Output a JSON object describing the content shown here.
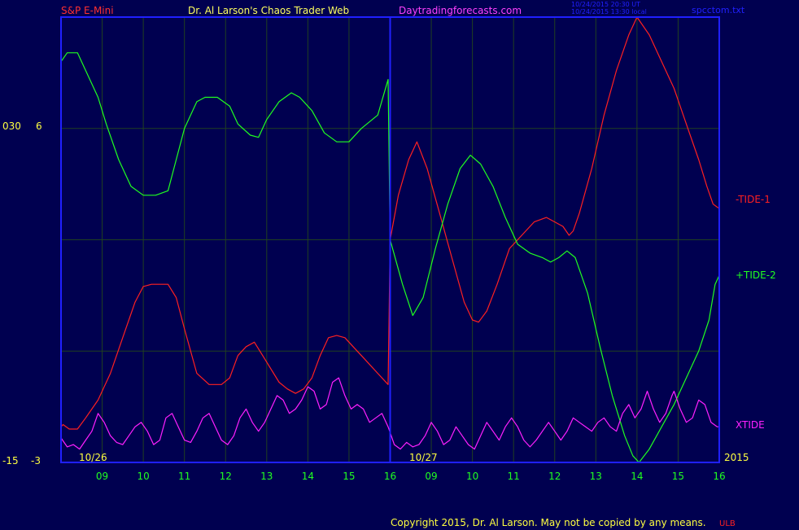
{
  "header": {
    "symbol": "S&P E-Mini",
    "author": "Dr. Al Larson's Chaos Trader Web",
    "site": "Daytradingforecasts.com",
    "timestamp1": "10/24/2015 20:30 UT",
    "timestamp2": "10/24/2015 13:30 local",
    "file": "spcctom.txt"
  },
  "footer": {
    "copyright": "Copyright 2015, Dr. Al Larson. May not be copied by any means.",
    "mark": "ULB"
  },
  "colors": {
    "background": "#000050",
    "frame": "#2020ff",
    "grid": "#204020",
    "tide1": "#ff2020",
    "tide2": "#20ff20",
    "xtide": "#ff20ff",
    "hours": "#20ff20",
    "text_yellow": "#ffff40",
    "text_magenta": "#ff40ff",
    "text_white": "#ffffff"
  },
  "chart_data": {
    "type": "line",
    "x_unit": "hour index (day 10/26 = 8..16, day 10/27 = 16..24)",
    "xlim": [
      8.0,
      24.0
    ],
    "ylim": [
      0,
      100
    ],
    "y_axis_labels": {
      "left_outer_top": "030",
      "left_inner_top": "6",
      "left_outer_bottom": "-15",
      "left_inner_bottom": "-3"
    },
    "date_labels": [
      {
        "x": 8.4,
        "label": "10/26"
      },
      {
        "x": 16.4,
        "label": "10/27"
      }
    ],
    "year_label": "2015",
    "day_boundary": 16.0,
    "hour_ticks": [
      {
        "x": 9,
        "label": "09"
      },
      {
        "x": 10,
        "label": "10"
      },
      {
        "x": 11,
        "label": "11"
      },
      {
        "x": 12,
        "label": "12"
      },
      {
        "x": 13,
        "label": "13"
      },
      {
        "x": 14,
        "label": "14"
      },
      {
        "x": 15,
        "label": "15"
      },
      {
        "x": 16,
        "label": "16"
      },
      {
        "x": 17,
        "label": "09"
      },
      {
        "x": 18,
        "label": "10"
      },
      {
        "x": 19,
        "label": "11"
      },
      {
        "x": 20,
        "label": "12"
      },
      {
        "x": 21,
        "label": "13"
      },
      {
        "x": 22,
        "label": "14"
      },
      {
        "x": 23,
        "label": "15"
      },
      {
        "x": 24,
        "label": "16"
      }
    ],
    "grid_y": [
      25,
      50,
      75
    ],
    "series": [
      {
        "name": "-TIDE-1",
        "color": "#ff2020",
        "points": [
          [
            8.0,
            8.0
          ],
          [
            8.05,
            8.5
          ],
          [
            8.2,
            7.5
          ],
          [
            8.4,
            7.5
          ],
          [
            8.6,
            10
          ],
          [
            8.9,
            14
          ],
          [
            9.2,
            20
          ],
          [
            9.5,
            28
          ],
          [
            9.8,
            36
          ],
          [
            10.0,
            39.5
          ],
          [
            10.2,
            40
          ],
          [
            10.6,
            40
          ],
          [
            10.8,
            37
          ],
          [
            11.0,
            30
          ],
          [
            11.3,
            20
          ],
          [
            11.6,
            17.5
          ],
          [
            11.9,
            17.5
          ],
          [
            12.1,
            19
          ],
          [
            12.3,
            24
          ],
          [
            12.5,
            26
          ],
          [
            12.7,
            27
          ],
          [
            12.9,
            24
          ],
          [
            13.1,
            21
          ],
          [
            13.3,
            18
          ],
          [
            13.5,
            16.5
          ],
          [
            13.7,
            15.5
          ],
          [
            13.9,
            16.5
          ],
          [
            14.1,
            19
          ],
          [
            14.3,
            24
          ],
          [
            14.5,
            28
          ],
          [
            14.7,
            28.5
          ],
          [
            14.9,
            28
          ],
          [
            15.1,
            26
          ],
          [
            15.4,
            23
          ],
          [
            15.7,
            20
          ],
          [
            15.95,
            17.5
          ],
          [
            16.0,
            50
          ],
          [
            16.2,
            60
          ],
          [
            16.45,
            68
          ],
          [
            16.65,
            72
          ],
          [
            16.9,
            66
          ],
          [
            17.2,
            56
          ],
          [
            17.5,
            46
          ],
          [
            17.8,
            36
          ],
          [
            18.0,
            32
          ],
          [
            18.15,
            31.5
          ],
          [
            18.35,
            34
          ],
          [
            18.6,
            40
          ],
          [
            18.9,
            48
          ],
          [
            19.2,
            51
          ],
          [
            19.5,
            54
          ],
          [
            19.8,
            55
          ],
          [
            20.0,
            54
          ],
          [
            20.2,
            53
          ],
          [
            20.35,
            51
          ],
          [
            20.45,
            52
          ],
          [
            20.6,
            56
          ],
          [
            20.9,
            66
          ],
          [
            21.2,
            78
          ],
          [
            21.5,
            88
          ],
          [
            21.8,
            96
          ],
          [
            22.0,
            100
          ],
          [
            22.3,
            96
          ],
          [
            22.6,
            90
          ],
          [
            22.9,
            84
          ],
          [
            23.2,
            76
          ],
          [
            23.5,
            68
          ],
          [
            23.7,
            62
          ],
          [
            23.85,
            58
          ],
          [
            24.0,
            57
          ]
        ]
      },
      {
        "name": "+TIDE-2",
        "color": "#20ff20",
        "points": [
          [
            8.0,
            90
          ],
          [
            8.15,
            92
          ],
          [
            8.4,
            92
          ],
          [
            8.6,
            88
          ],
          [
            8.9,
            82
          ],
          [
            9.1,
            76
          ],
          [
            9.4,
            68
          ],
          [
            9.7,
            62
          ],
          [
            10.0,
            60
          ],
          [
            10.3,
            60
          ],
          [
            10.6,
            61
          ],
          [
            10.8,
            68
          ],
          [
            11.0,
            75
          ],
          [
            11.3,
            81
          ],
          [
            11.5,
            82
          ],
          [
            11.8,
            82
          ],
          [
            12.1,
            80
          ],
          [
            12.3,
            76
          ],
          [
            12.6,
            73.5
          ],
          [
            12.8,
            73
          ],
          [
            13.0,
            77
          ],
          [
            13.3,
            81
          ],
          [
            13.6,
            83
          ],
          [
            13.8,
            82
          ],
          [
            14.1,
            79
          ],
          [
            14.4,
            74
          ],
          [
            14.7,
            72
          ],
          [
            15.0,
            72
          ],
          [
            15.3,
            75
          ],
          [
            15.7,
            78
          ],
          [
            15.95,
            86
          ],
          [
            16.0,
            50
          ],
          [
            16.3,
            40
          ],
          [
            16.55,
            33
          ],
          [
            16.8,
            37
          ],
          [
            17.1,
            48
          ],
          [
            17.4,
            58
          ],
          [
            17.7,
            66
          ],
          [
            17.95,
            69
          ],
          [
            18.2,
            67
          ],
          [
            18.5,
            62
          ],
          [
            18.8,
            55
          ],
          [
            19.1,
            49
          ],
          [
            19.4,
            47
          ],
          [
            19.7,
            46
          ],
          [
            19.9,
            45
          ],
          [
            20.1,
            46
          ],
          [
            20.3,
            47.5
          ],
          [
            20.5,
            46
          ],
          [
            20.8,
            38
          ],
          [
            21.1,
            26
          ],
          [
            21.4,
            15
          ],
          [
            21.7,
            6
          ],
          [
            21.9,
            1.5
          ],
          [
            22.05,
            0
          ],
          [
            22.3,
            3
          ],
          [
            22.6,
            8
          ],
          [
            22.9,
            13
          ],
          [
            23.2,
            19
          ],
          [
            23.5,
            25
          ],
          [
            23.75,
            32
          ],
          [
            23.9,
            40
          ],
          [
            24.0,
            42
          ]
        ]
      },
      {
        "name": "XTIDE",
        "color": "#ff20ff",
        "points": [
          [
            8.0,
            5.5
          ],
          [
            8.15,
            3.5
          ],
          [
            8.3,
            4
          ],
          [
            8.45,
            3
          ],
          [
            8.6,
            5
          ],
          [
            8.75,
            7
          ],
          [
            8.9,
            11
          ],
          [
            9.05,
            9
          ],
          [
            9.2,
            6
          ],
          [
            9.35,
            4.5
          ],
          [
            9.5,
            4
          ],
          [
            9.65,
            6
          ],
          [
            9.8,
            8
          ],
          [
            9.95,
            9
          ],
          [
            10.1,
            7
          ],
          [
            10.25,
            4
          ],
          [
            10.4,
            5
          ],
          [
            10.55,
            10
          ],
          [
            10.7,
            11
          ],
          [
            10.85,
            8
          ],
          [
            11.0,
            5
          ],
          [
            11.15,
            4.5
          ],
          [
            11.3,
            7
          ],
          [
            11.45,
            10
          ],
          [
            11.6,
            11
          ],
          [
            11.75,
            8
          ],
          [
            11.9,
            5
          ],
          [
            12.05,
            4
          ],
          [
            12.2,
            6
          ],
          [
            12.35,
            10
          ],
          [
            12.5,
            12
          ],
          [
            12.65,
            9
          ],
          [
            12.8,
            7
          ],
          [
            12.95,
            9
          ],
          [
            13.1,
            12
          ],
          [
            13.25,
            15
          ],
          [
            13.4,
            14
          ],
          [
            13.55,
            11
          ],
          [
            13.7,
            12
          ],
          [
            13.85,
            14
          ],
          [
            14.0,
            17
          ],
          [
            14.15,
            16
          ],
          [
            14.3,
            12
          ],
          [
            14.45,
            13
          ],
          [
            14.6,
            18
          ],
          [
            14.75,
            19
          ],
          [
            14.9,
            15
          ],
          [
            15.05,
            12
          ],
          [
            15.2,
            13
          ],
          [
            15.35,
            12
          ],
          [
            15.5,
            9
          ],
          [
            15.65,
            10
          ],
          [
            15.8,
            11
          ],
          [
            15.95,
            8
          ],
          [
            16.1,
            4
          ],
          [
            16.25,
            3
          ],
          [
            16.4,
            4.5
          ],
          [
            16.55,
            3.5
          ],
          [
            16.7,
            4
          ],
          [
            16.85,
            6
          ],
          [
            17.0,
            9
          ],
          [
            17.15,
            7
          ],
          [
            17.3,
            4
          ],
          [
            17.45,
            5
          ],
          [
            17.6,
            8
          ],
          [
            17.75,
            6
          ],
          [
            17.9,
            4
          ],
          [
            18.05,
            3
          ],
          [
            18.2,
            6
          ],
          [
            18.35,
            9
          ],
          [
            18.5,
            7
          ],
          [
            18.65,
            5
          ],
          [
            18.8,
            8
          ],
          [
            18.95,
            10
          ],
          [
            19.1,
            8
          ],
          [
            19.25,
            5
          ],
          [
            19.4,
            3.5
          ],
          [
            19.55,
            5
          ],
          [
            19.7,
            7
          ],
          [
            19.85,
            9
          ],
          [
            20.0,
            7
          ],
          [
            20.15,
            5
          ],
          [
            20.3,
            7
          ],
          [
            20.45,
            10
          ],
          [
            20.6,
            9
          ],
          [
            20.75,
            8
          ],
          [
            20.9,
            7
          ],
          [
            21.05,
            9
          ],
          [
            21.2,
            10
          ],
          [
            21.35,
            8
          ],
          [
            21.5,
            7
          ],
          [
            21.65,
            11
          ],
          [
            21.8,
            13
          ],
          [
            21.95,
            10
          ],
          [
            22.1,
            12
          ],
          [
            22.25,
            16
          ],
          [
            22.4,
            12
          ],
          [
            22.55,
            9
          ],
          [
            22.7,
            11
          ],
          [
            22.85,
            15
          ],
          [
            22.9,
            16
          ],
          [
            23.05,
            12
          ],
          [
            23.2,
            9
          ],
          [
            23.35,
            10
          ],
          [
            23.5,
            14
          ],
          [
            23.65,
            13
          ],
          [
            23.8,
            9
          ],
          [
            23.95,
            8
          ],
          [
            24.0,
            8
          ]
        ]
      }
    ]
  }
}
